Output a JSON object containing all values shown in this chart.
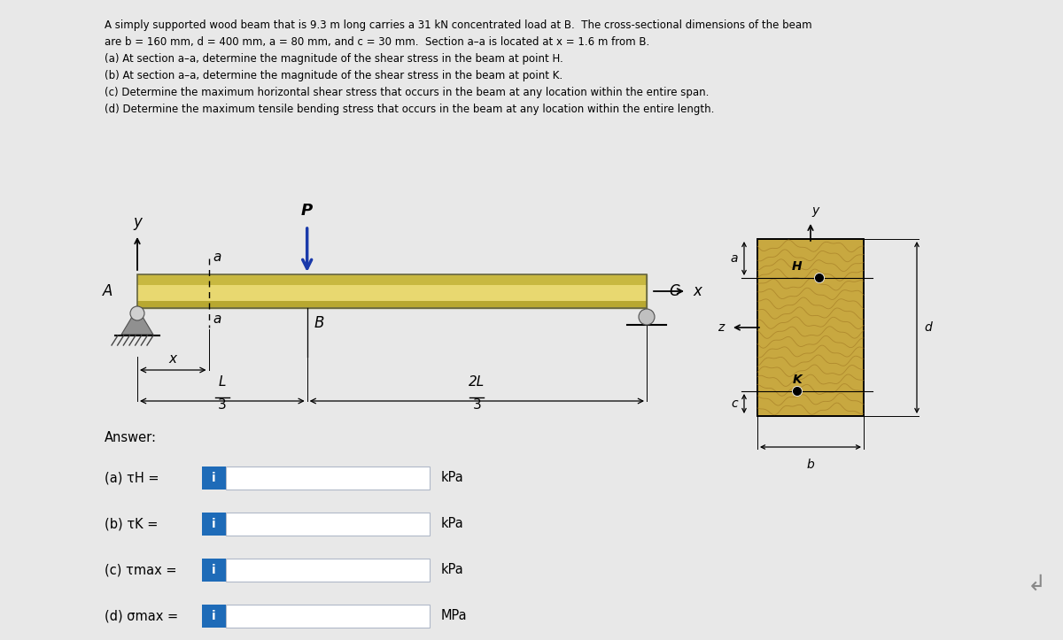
{
  "bg_color": "#e8e8e8",
  "beam_fill": "#e8d870",
  "beam_top_stripe": "#c8b840",
  "beam_bot_stripe": "#b8a830",
  "beam_mid_color": "#d4c860",
  "wood_base": "#c8a840",
  "wood_grain": "#a88028",
  "title_lines": [
    "A simply supported wood beam that is 9.3 m long carries a 31 kN concentrated load at B.  The cross-sectional dimensions of the beam",
    "are b = 160 mm, d = 400 mm, a = 80 mm, and c = 30 mm.  Section a–a is located at x = 1.6 m from B.",
    "(a) At section a–a, determine the magnitude of the shear stress in the beam at point H.",
    "(b) At section a–a, determine the magnitude of the shear stress in the beam at point K.",
    "(c) Determine the maximum horizontal shear stress that occurs in the beam at any location within the entire span.",
    "(d) Determine the maximum tensile bending stress that occurs in the beam at any location within the entire length."
  ],
  "answer_labels": [
    "(a) τH =",
    "(b) τK =",
    "(c) τmax =",
    "(d) σmax ="
  ],
  "answer_units": [
    "kPa",
    "kPa",
    "kPa",
    "MPa"
  ],
  "icon_color": "#1e6bb8",
  "box_fill": "#e8f0f8",
  "box_edge": "#b0b8c8"
}
